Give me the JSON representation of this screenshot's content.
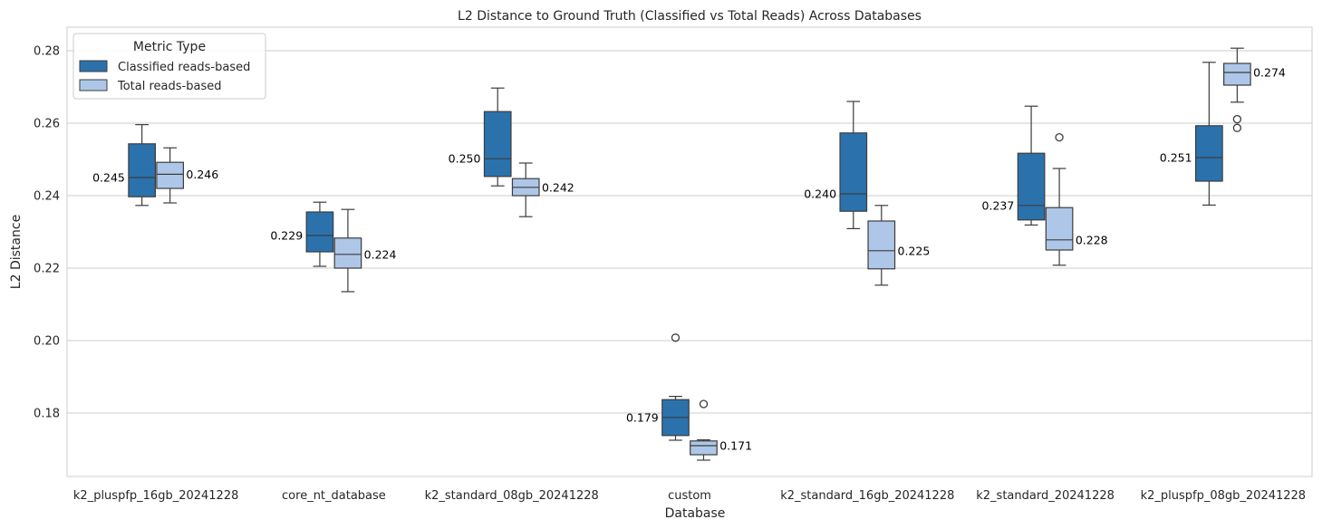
{
  "chart_data": {
    "type": "box",
    "title": "L2 Distance to Ground Truth (Classified vs Total Reads) Across Databases",
    "xlabel": "Database",
    "ylabel": "L2 Distance",
    "ylim": [
      0.1625,
      0.2865
    ],
    "yticks": [
      0.18,
      0.2,
      0.22,
      0.24,
      0.26,
      0.28
    ],
    "ytick_labels": [
      "0.18",
      "0.20",
      "0.22",
      "0.24",
      "0.26",
      "0.28"
    ],
    "grid": "horizontal",
    "categories": [
      "k2_pluspfp_16gb_20241228",
      "core_nt_database",
      "k2_standard_08gb_20241228",
      "custom",
      "k2_standard_16gb_20241228",
      "k2_standard_20241228",
      "k2_pluspfp_08gb_20241228"
    ],
    "legend": {
      "title": "Metric Type",
      "position": "upper-left"
    },
    "series": [
      {
        "name": "Classified reads-based",
        "color": "#2b72ad",
        "boxes": [
          {
            "whislo": 0.2373,
            "q1": 0.2397,
            "med": 0.245,
            "q3": 0.2543,
            "whishi": 0.2596,
            "fliers": [],
            "label": "0.245"
          },
          {
            "whislo": 0.2205,
            "q1": 0.2245,
            "med": 0.229,
            "q3": 0.2355,
            "whishi": 0.2382,
            "fliers": [],
            "label": "0.229"
          },
          {
            "whislo": 0.2427,
            "q1": 0.2453,
            "med": 0.2502,
            "q3": 0.2632,
            "whishi": 0.2697,
            "fliers": [],
            "label": "0.250"
          },
          {
            "whislo": 0.1725,
            "q1": 0.1738,
            "med": 0.1788,
            "q3": 0.1837,
            "whishi": 0.1846,
            "fliers": [
              0.2008
            ],
            "label": "0.179"
          },
          {
            "whislo": 0.2309,
            "q1": 0.2357,
            "med": 0.2405,
            "q3": 0.2573,
            "whishi": 0.266,
            "fliers": [],
            "label": "0.240"
          },
          {
            "whislo": 0.2319,
            "q1": 0.2333,
            "med": 0.2373,
            "q3": 0.2517,
            "whishi": 0.2647,
            "fliers": [],
            "label": "0.237"
          },
          {
            "whislo": 0.2374,
            "q1": 0.244,
            "med": 0.2505,
            "q3": 0.2593,
            "whishi": 0.2768,
            "fliers": [],
            "label": "0.251"
          }
        ]
      },
      {
        "name": "Total reads-based",
        "color": "#aec7e8",
        "boxes": [
          {
            "whislo": 0.238,
            "q1": 0.242,
            "med": 0.2459,
            "q3": 0.2492,
            "whishi": 0.2532,
            "fliers": [],
            "label": "0.246"
          },
          {
            "whislo": 0.2135,
            "q1": 0.22,
            "med": 0.2238,
            "q3": 0.2283,
            "whishi": 0.2362,
            "fliers": [],
            "label": "0.224"
          },
          {
            "whislo": 0.2342,
            "q1": 0.24,
            "med": 0.2423,
            "q3": 0.2447,
            "whishi": 0.249,
            "fliers": [],
            "label": "0.242"
          },
          {
            "whislo": 0.167,
            "q1": 0.1685,
            "med": 0.171,
            "q3": 0.1723,
            "whishi": 0.1726,
            "fliers": [
              0.1825
            ],
            "label": "0.171"
          },
          {
            "whislo": 0.2153,
            "q1": 0.2198,
            "med": 0.2248,
            "q3": 0.233,
            "whishi": 0.2373,
            "fliers": [],
            "label": "0.225"
          },
          {
            "whislo": 0.2208,
            "q1": 0.225,
            "med": 0.2278,
            "q3": 0.2367,
            "whishi": 0.2475,
            "fliers": [
              0.2561
            ],
            "label": "0.228"
          },
          {
            "whislo": 0.2658,
            "q1": 0.2705,
            "med": 0.274,
            "q3": 0.2765,
            "whishi": 0.2807,
            "fliers": [
              0.2611,
              0.2587
            ],
            "label": "0.274"
          }
        ]
      }
    ]
  }
}
